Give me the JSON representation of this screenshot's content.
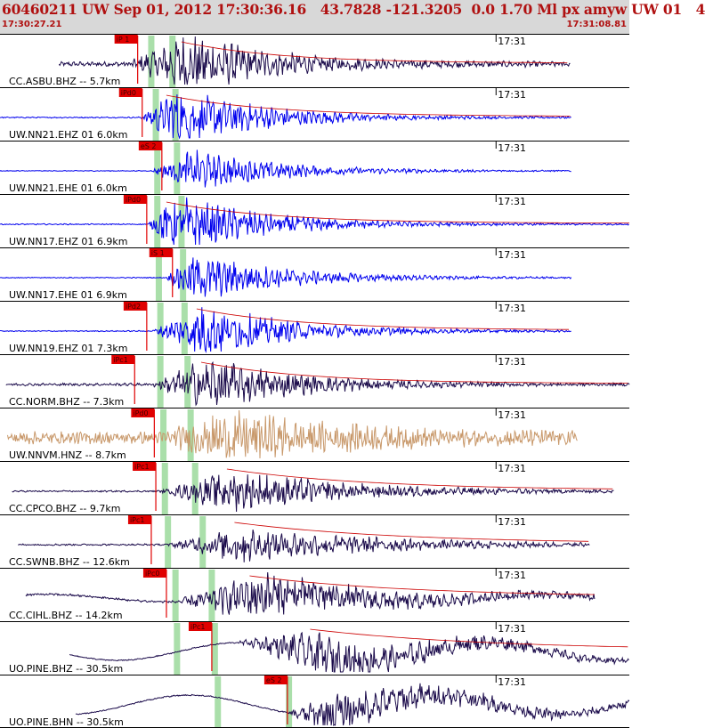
{
  "header": {
    "title": "60460211 UW Sep 01, 2012 17:30:36.16   43.7828 -121.3205  0.0 1.70 Ml px amyw UW 01   4",
    "start_time": "17:30:27.21",
    "end_time": "17:31:08.81"
  },
  "colors": {
    "header_bg": "#d8d8d8",
    "header_text": "#b01010",
    "pick_box": "#e00000",
    "fit_curve": "#cc0000",
    "highlight": "#9bd99b",
    "dark_trace": "#1a0a4a",
    "blue_trace": "#0000ee",
    "tan_trace": "#c8986a"
  },
  "chart_data": {
    "type": "line",
    "time_range": [
      0,
      41.6
    ],
    "minute_label": "17:31",
    "minute_tick_time": 32.79,
    "traces": [
      {
        "name": "CC.ASBU.BHZ -- 5.7km",
        "color": "dark",
        "amp": 1.0,
        "start": 3.9,
        "end": 37.7,
        "onset": 8.5,
        "peak": 12.5,
        "decay": 5.5,
        "noise": 0.08,
        "period": 0.4,
        "long": 0,
        "fit": true,
        "picks": [
          {
            "label": "iP 1",
            "t": 9.1
          }
        ]
      },
      {
        "name": "UW.NN21.EHZ 01 6.0km",
        "color": "blue",
        "amp": 1.0,
        "start": 0,
        "end": 37.8,
        "onset": 9.3,
        "peak": 11.5,
        "decay": 6,
        "noise": 0.02,
        "period": 0.35,
        "long": 0,
        "fit": true,
        "picks": [
          {
            "label": "iPd0",
            "t": 9.4
          }
        ]
      },
      {
        "name": "UW.NN21.EHE 01 6.0km",
        "color": "blue",
        "amp": 0.7,
        "start": 0,
        "end": 37.8,
        "onset": 10.0,
        "peak": 12.5,
        "decay": 6,
        "noise": 0.02,
        "period": 0.35,
        "long": 0,
        "fit": false,
        "picks": [
          {
            "label": "eS 2",
            "t": 10.7
          }
        ]
      },
      {
        "name": "UW.NN17.EHZ 01 6.9km",
        "color": "blue",
        "amp": 1.0,
        "start": 0,
        "end": 41.6,
        "onset": 9.8,
        "peak": 11.5,
        "decay": 6,
        "noise": 0.02,
        "period": 0.35,
        "long": 0,
        "fit": true,
        "picks": [
          {
            "label": "iPd0",
            "t": 9.7
          }
        ]
      },
      {
        "name": "UW.NN17.EHE 01 6.9km",
        "color": "blue",
        "amp": 0.85,
        "start": 0,
        "end": 37.8,
        "onset": 11.0,
        "peak": 12.5,
        "decay": 6,
        "noise": 0.02,
        "period": 0.35,
        "long": 0,
        "fit": false,
        "picks": [
          {
            "label": "iS 1",
            "t": 11.4
          }
        ]
      },
      {
        "name": "UW.NN19.EHZ 01 7.3km",
        "color": "blue",
        "amp": 0.9,
        "start": 0,
        "end": 37.8,
        "onset": 10.0,
        "peak": 13.5,
        "decay": 6,
        "noise": 0.02,
        "period": 0.35,
        "long": 0,
        "fit": true,
        "picks": [
          {
            "label": "iPd2",
            "t": 9.7
          }
        ]
      },
      {
        "name": "CC.NORM.BHZ -- 7.3km",
        "color": "dark",
        "amp": 0.9,
        "start": 0.4,
        "end": 41.6,
        "onset": 10.0,
        "peak": 13.8,
        "decay": 6,
        "noise": 0.05,
        "period": 0.45,
        "long": 0,
        "fit": true,
        "picks": [
          {
            "label": "iPc1",
            "t": 8.9
          }
        ]
      },
      {
        "name": "UW.NNVM.HNZ -- 8.7km",
        "color": "tan",
        "amp": 0.7,
        "start": 0.5,
        "end": 38.2,
        "onset": 10.5,
        "peak": 15.5,
        "decay": 8,
        "noise": 0.3,
        "period": 0.25,
        "long": 0,
        "fit": false,
        "picks": [
          {
            "label": "iPd0",
            "t": 10.2
          }
        ]
      },
      {
        "name": "CC.CPCO.BHZ -- 9.7km",
        "color": "dark",
        "amp": 0.7,
        "start": 0.8,
        "end": 40.6,
        "onset": 10.5,
        "peak": 15.5,
        "decay": 8,
        "noise": 0.04,
        "period": 0.45,
        "long": 0,
        "fit": true,
        "picks": [
          {
            "label": "iPc1",
            "t": 10.3
          }
        ]
      },
      {
        "name": "CC.SWNB.BHZ -- 12.6km",
        "color": "dark",
        "amp": 0.6,
        "start": 1.2,
        "end": 39.0,
        "onset": 11.0,
        "peak": 16,
        "decay": 9,
        "noise": 0.05,
        "period": 0.45,
        "long": 0,
        "fit": true,
        "picks": [
          {
            "label": "iPc1",
            "t": 10.0
          }
        ]
      },
      {
        "name": "CC.CIHL.BHZ -- 14.2km",
        "color": "dark",
        "amp": 0.8,
        "start": 1.7,
        "end": 39.3,
        "onset": 11.5,
        "peak": 17,
        "decay": 9,
        "noise": 0.05,
        "period": 0.45,
        "long": 0.2,
        "fit": true,
        "picks": [
          {
            "label": "iPc0",
            "t": 11.0
          }
        ]
      },
      {
        "name": "UO.PINE.BHZ -- 30.5km",
        "color": "dark",
        "amp": 0.7,
        "start": 4.6,
        "end": 41.6,
        "onset": 15.5,
        "peak": 21,
        "decay": 10,
        "noise": 0.03,
        "period": 0.6,
        "long": 0.55,
        "fit": true,
        "picks": [
          {
            "label": "iPc1",
            "t": 14.0
          }
        ]
      },
      {
        "name": "UO.PINE.BHN -- 30.5km",
        "color": "dark",
        "amp": 0.7,
        "start": 5.0,
        "end": 41.6,
        "onset": 19.0,
        "peak": 22,
        "decay": 10,
        "noise": 0.03,
        "period": 0.6,
        "long": 0.6,
        "fit": false,
        "picks": [
          {
            "label": "eS 2",
            "t": 19.0
          }
        ]
      }
    ],
    "highlight_bands": [
      {
        "times": [
          10.0,
          10.3,
          10.4,
          10.4,
          10.5,
          10.6,
          10.6,
          10.8,
          10.9,
          11.1,
          11.6,
          11.7,
          14.4
        ]
      },
      {
        "times": [
          11.4,
          11.6,
          11.7,
          12.0,
          12.1,
          12.2,
          12.4,
          12.6,
          12.9,
          13.4,
          14.0,
          14.2,
          19.1
        ]
      }
    ]
  }
}
